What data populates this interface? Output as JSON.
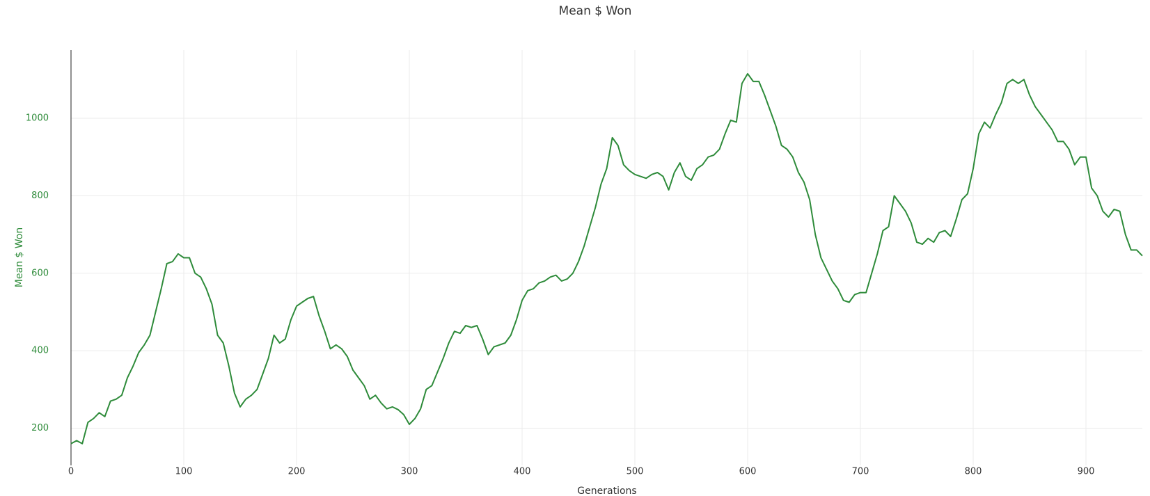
{
  "chart_data": {
    "type": "line",
    "title": "Mean $ Won",
    "x_label": "Generations",
    "y_label": "Mean $ Won",
    "x": [
      0,
      5,
      10,
      15,
      20,
      25,
      30,
      35,
      40,
      45,
      50,
      55,
      60,
      65,
      70,
      75,
      80,
      85,
      90,
      95,
      100,
      105,
      110,
      115,
      120,
      125,
      130,
      135,
      140,
      145,
      150,
      155,
      160,
      165,
      170,
      175,
      180,
      185,
      190,
      195,
      200,
      205,
      210,
      215,
      220,
      225,
      230,
      235,
      240,
      245,
      250,
      255,
      260,
      265,
      270,
      275,
      280,
      285,
      290,
      295,
      300,
      305,
      310,
      315,
      320,
      325,
      330,
      335,
      340,
      345,
      350,
      355,
      360,
      365,
      370,
      375,
      380,
      385,
      390,
      395,
      400,
      405,
      410,
      415,
      420,
      425,
      430,
      435,
      440,
      445,
      450,
      455,
      460,
      465,
      470,
      475,
      480,
      485,
      490,
      495,
      500,
      505,
      510,
      515,
      520,
      525,
      530,
      535,
      540,
      545,
      550,
      555,
      560,
      565,
      570,
      575,
      580,
      585,
      590,
      595,
      600,
      605,
      610,
      615,
      620,
      625,
      630,
      635,
      640,
      645,
      650,
      655,
      660,
      665,
      670,
      675,
      680,
      685,
      690,
      695,
      700,
      705,
      710,
      715,
      720,
      725,
      730,
      735,
      740,
      745,
      750,
      755,
      760,
      765,
      770,
      775,
      780,
      785,
      790,
      795,
      800,
      805,
      810,
      815,
      820,
      825,
      830,
      835,
      840,
      845,
      850,
      855,
      860,
      865,
      870,
      875,
      880,
      885,
      890,
      895,
      900,
      905,
      910,
      915,
      920,
      925,
      930,
      935,
      940,
      945,
      950
    ],
    "series": [
      {
        "name": "Mean $ Won",
        "color": "#2e8b3a",
        "values": [
          160,
          168,
          160,
          215,
          225,
          240,
          230,
          270,
          275,
          285,
          330,
          360,
          395,
          415,
          440,
          500,
          560,
          625,
          630,
          650,
          640,
          640,
          600,
          590,
          560,
          520,
          440,
          420,
          360,
          290,
          255,
          275,
          285,
          300,
          340,
          380,
          440,
          420,
          430,
          480,
          515,
          525,
          535,
          540,
          490,
          450,
          405,
          415,
          405,
          385,
          350,
          330,
          310,
          275,
          285,
          265,
          250,
          255,
          248,
          235,
          210,
          225,
          250,
          300,
          310,
          345,
          380,
          420,
          450,
          445,
          465,
          460,
          465,
          430,
          390,
          410,
          415,
          420,
          440,
          480,
          530,
          555,
          560,
          575,
          580,
          590,
          595,
          580,
          585,
          600,
          630,
          670,
          720,
          770,
          830,
          870,
          950,
          930,
          880,
          865,
          855,
          850,
          845,
          855,
          860,
          850,
          815,
          860,
          885,
          850,
          840,
          870,
          880,
          900,
          905,
          920,
          960,
          995,
          990,
          1090,
          1115,
          1095,
          1095,
          1060,
          1020,
          980,
          930,
          920,
          900,
          860,
          835,
          790,
          700,
          640,
          610,
          580,
          560,
          530,
          525,
          545,
          550,
          550,
          600,
          650,
          710,
          720,
          800,
          780,
          760,
          730,
          680,
          675,
          690,
          680,
          705,
          710,
          695,
          740,
          790,
          805,
          870,
          960,
          990,
          975,
          1010,
          1040,
          1090,
          1100,
          1090,
          1100,
          1060,
          1030,
          1010,
          990,
          970,
          940,
          940,
          920,
          880,
          900,
          900,
          820,
          800,
          760,
          745,
          765,
          760,
          700,
          660,
          660,
          645
        ]
      }
    ],
    "xlim": [
      0,
      950
    ],
    "ylim": [
      104,
      1176
    ],
    "xticks": [
      0,
      100,
      200,
      300,
      400,
      500,
      600,
      700,
      800,
      900
    ],
    "yticks": [
      200,
      400,
      600,
      800,
      1000
    ],
    "grid": true
  }
}
